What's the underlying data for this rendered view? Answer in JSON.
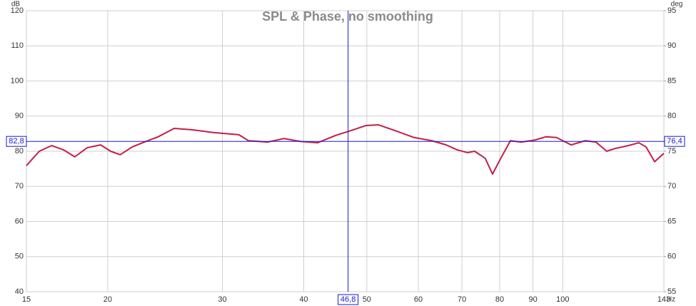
{
  "chart_data": {
    "type": "line",
    "title": "SPL & Phase, no smoothing",
    "ylabel": "dB",
    "y2label": "deg",
    "xunit": "Hz",
    "xscale": "log",
    "grid": true,
    "xlim": [
      15,
      143
    ],
    "xticks": [
      15,
      20,
      30,
      40,
      50,
      60,
      70,
      80,
      90,
      100,
      143
    ],
    "ylim": [
      40,
      120
    ],
    "yticks": [
      40,
      50,
      60,
      70,
      80,
      90,
      100,
      110,
      120
    ],
    "y2lim": [
      55,
      95
    ],
    "y2ticks": [
      55,
      60,
      65,
      70,
      75,
      80,
      85,
      90,
      95
    ],
    "x": [
      15,
      15.7,
      16.4,
      17.1,
      17.8,
      18.6,
      19.5,
      20.2,
      20.9,
      21.8,
      22.9,
      23.9,
      25.3,
      27,
      29.1,
      31.8,
      32.9,
      34.1,
      35.2,
      37.3,
      39.5,
      42,
      44.8,
      47.7,
      49.8,
      52.1,
      54.8,
      59.1,
      62.9,
      66.2,
      68.8,
      71.4,
      73.2,
      76,
      78,
      80,
      83.1,
      86.3,
      90.7,
      94.2,
      97.8,
      103,
      108.3,
      112.5,
      116.8,
      120.5,
      126.1,
      130.9,
      134.3,
      138.4,
      143
    ],
    "series": [
      {
        "color": "#c41e4a",
        "values": [
          75.9,
          80,
          81.6,
          80.4,
          78.4,
          81,
          81.8,
          80,
          79,
          81.2,
          82.8,
          84.1,
          86.5,
          86.1,
          85.3,
          84.7,
          83,
          82.8,
          82.6,
          83.6,
          82.8,
          82.4,
          84.5,
          86.1,
          87.3,
          87.5,
          86.1,
          83.9,
          83,
          81.8,
          80.4,
          79.6,
          80,
          78,
          73.5,
          77.4,
          83,
          82.6,
          83.2,
          84.1,
          83.9,
          81.8,
          83,
          82.6,
          80,
          80.8,
          81.6,
          82.4,
          81.2,
          77,
          79.4
        ]
      }
    ],
    "cursor": {
      "color": "#1a1acc",
      "x": {
        "value": 46.8,
        "label": "46,8"
      },
      "y": {
        "value": 82.8,
        "label": "82,8"
      },
      "y2": {
        "value": 76.4,
        "label": "76,4"
      }
    }
  }
}
